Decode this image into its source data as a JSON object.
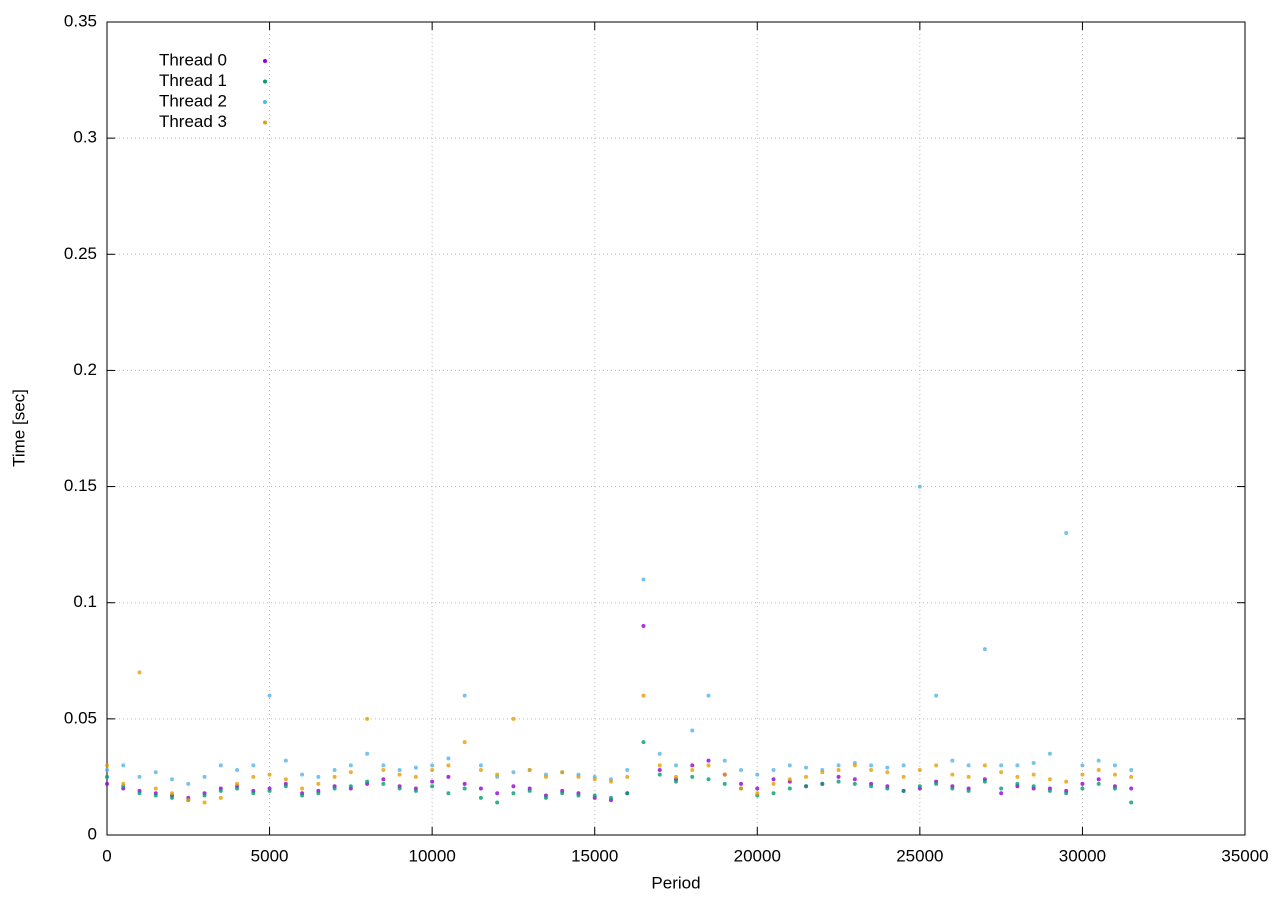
{
  "chart_data": {
    "type": "scatter",
    "x_label": "Period",
    "y_label": "Time [sec]",
    "xlim": [
      0,
      35000
    ],
    "xticks": [
      0,
      5000,
      10000,
      15000,
      20000,
      25000,
      30000,
      35000
    ],
    "ylim": [
      0,
      0.35
    ],
    "yticks": [
      0,
      0.05,
      0.1,
      0.15,
      0.2,
      0.25,
      0.3,
      0.35
    ],
    "grid": true,
    "legend": "top-left",
    "x": [
      0,
      500,
      1000,
      1500,
      2000,
      2500,
      3000,
      3500,
      4000,
      4500,
      5000,
      5500,
      6000,
      6500,
      7000,
      7500,
      8000,
      8500,
      9000,
      9500,
      10000,
      10500,
      11000,
      11500,
      12000,
      12500,
      13000,
      13500,
      14000,
      14500,
      15000,
      15500,
      16000,
      16500,
      17000,
      17500,
      18000,
      18500,
      19000,
      19500,
      20000,
      20500,
      21000,
      21500,
      22000,
      22500,
      23000,
      23500,
      24000,
      24500,
      25000,
      25500,
      26000,
      26500,
      27000,
      27500,
      28000,
      28500,
      29000,
      29500,
      30000,
      30500,
      31000,
      31500
    ],
    "series": [
      {
        "name": "Thread 0",
        "color": "#9400d3",
        "values": [
          0.022,
          0.02,
          0.019,
          0.018,
          0.017,
          0.016,
          0.018,
          0.02,
          0.021,
          0.019,
          0.02,
          0.022,
          0.018,
          0.019,
          0.021,
          0.02,
          0.022,
          0.024,
          0.021,
          0.02,
          0.023,
          0.025,
          0.022,
          0.02,
          0.018,
          0.021,
          0.02,
          0.017,
          0.019,
          0.018,
          0.016,
          0.015,
          0.018,
          0.09,
          0.028,
          0.024,
          0.03,
          0.032,
          0.026,
          0.022,
          0.02,
          0.024,
          0.023,
          0.021,
          0.022,
          0.025,
          0.024,
          0.022,
          0.021,
          0.019,
          0.02,
          0.023,
          0.021,
          0.02,
          0.024,
          0.018,
          0.021,
          0.02,
          0.02,
          0.019,
          0.022,
          0.024,
          0.021,
          0.02
        ]
      },
      {
        "name": "Thread 1",
        "color": "#009e73",
        "values": [
          0.025,
          0.021,
          0.018,
          0.017,
          0.016,
          0.015,
          0.017,
          0.019,
          0.02,
          0.018,
          0.019,
          0.021,
          0.017,
          0.018,
          0.02,
          0.021,
          0.023,
          0.022,
          0.02,
          0.019,
          0.021,
          0.018,
          0.02,
          0.016,
          0.014,
          0.018,
          0.019,
          0.016,
          0.018,
          0.017,
          0.017,
          0.016,
          0.018,
          0.04,
          0.026,
          0.023,
          0.025,
          0.024,
          0.022,
          0.02,
          0.017,
          0.018,
          0.02,
          0.021,
          0.022,
          0.023,
          0.022,
          0.021,
          0.02,
          0.019,
          0.021,
          0.022,
          0.02,
          0.019,
          0.023,
          0.02,
          0.022,
          0.021,
          0.019,
          0.018,
          0.02,
          0.022,
          0.02,
          0.014
        ]
      },
      {
        "name": "Thread 2",
        "color": "#56b4e9",
        "values": [
          0.028,
          0.03,
          0.025,
          0.027,
          0.024,
          0.022,
          0.025,
          0.03,
          0.028,
          0.03,
          0.06,
          0.032,
          0.026,
          0.025,
          0.028,
          0.03,
          0.035,
          0.03,
          0.028,
          0.029,
          0.03,
          0.033,
          0.06,
          0.03,
          0.025,
          0.027,
          0.028,
          0.026,
          0.027,
          0.026,
          0.025,
          0.024,
          0.028,
          0.11,
          0.035,
          0.03,
          0.045,
          0.06,
          0.032,
          0.028,
          0.026,
          0.028,
          0.03,
          0.029,
          0.028,
          0.03,
          0.031,
          0.03,
          0.029,
          0.03,
          0.15,
          0.06,
          0.032,
          0.03,
          0.08,
          0.03,
          0.03,
          0.031,
          0.035,
          0.13,
          0.03,
          0.032,
          0.03,
          0.028
        ]
      },
      {
        "name": "Thread 3",
        "color": "#e69f00",
        "values": [
          0.03,
          0.022,
          0.07,
          0.02,
          0.018,
          0.015,
          0.014,
          0.016,
          0.022,
          0.025,
          0.026,
          0.024,
          0.02,
          0.022,
          0.025,
          0.027,
          0.05,
          0.028,
          0.026,
          0.025,
          0.028,
          0.03,
          0.04,
          0.028,
          0.026,
          0.05,
          0.028,
          0.025,
          0.027,
          0.025,
          0.024,
          0.023,
          0.025,
          0.06,
          0.03,
          0.025,
          0.028,
          0.03,
          0.026,
          0.02,
          0.018,
          0.022,
          0.024,
          0.025,
          0.027,
          0.028,
          0.03,
          0.028,
          0.027,
          0.025,
          0.028,
          0.03,
          0.026,
          0.025,
          0.03,
          0.027,
          0.025,
          0.026,
          0.024,
          0.023,
          0.026,
          0.028,
          0.026,
          0.025
        ]
      }
    ]
  }
}
